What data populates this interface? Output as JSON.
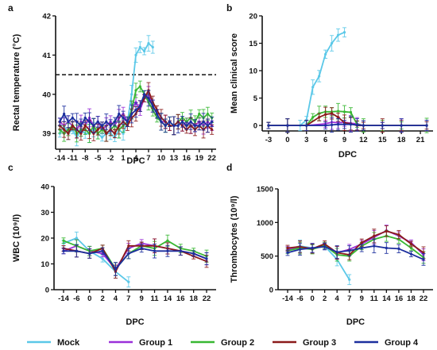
{
  "colors": {
    "Mock": "#5bc8e8",
    "Group 1": "#9b30d9",
    "Group 2": "#38b832",
    "Group 3": "#8b1a1a",
    "Group 4": "#1c2f9e"
  },
  "legend": [
    "Mock",
    "Group 1",
    "Group 2",
    "Group 3",
    "Group 4"
  ],
  "chart_data": [
    {
      "panel": "a",
      "type": "line",
      "xlabel": "DPC",
      "ylabel": "Rectal temperature (°C)",
      "xlim": [
        -15,
        23
      ],
      "ylim": [
        38.6,
        42
      ],
      "yticks": [
        39,
        40,
        41,
        42
      ],
      "xticks": [
        -14,
        -11,
        -8,
        -5,
        -2,
        1,
        4,
        7,
        10,
        13,
        16,
        19,
        22
      ],
      "reference_line": 40.5,
      "series": [
        {
          "name": "Mock",
          "x": [
            -14,
            -13,
            -12,
            -11,
            -10,
            -9,
            -8,
            -7,
            -6,
            -5,
            -4,
            -3,
            -2,
            -1,
            0,
            1,
            2,
            3,
            4,
            5,
            6,
            7,
            8
          ],
          "y": [
            39.0,
            39.2,
            39.0,
            39.1,
            38.9,
            39.1,
            39.0,
            39.0,
            39.1,
            39.0,
            38.9,
            39.0,
            39.0,
            38.9,
            39.1,
            39.0,
            39.3,
            40.0,
            41.0,
            41.2,
            41.1,
            41.3,
            41.2
          ]
        },
        {
          "name": "Group 1",
          "x": [
            -14,
            -13,
            -12,
            -11,
            -10,
            -9,
            -8,
            -7,
            -6,
            -5,
            -4,
            -3,
            -2,
            -1,
            0,
            1,
            2,
            3,
            4,
            5,
            6,
            7,
            8,
            9,
            10,
            11,
            12,
            13,
            14,
            15,
            16,
            17,
            18,
            19,
            20,
            21,
            22
          ],
          "y": [
            39.3,
            39.2,
            39.3,
            39.2,
            39.1,
            39.3,
            39.2,
            39.4,
            39.2,
            39.3,
            39.1,
            39.2,
            39.3,
            39.2,
            39.4,
            39.5,
            39.3,
            39.6,
            39.8,
            39.6,
            39.9,
            40.0,
            39.7,
            39.5,
            39.3,
            39.3,
            39.2,
            39.2,
            39.3,
            39.2,
            39.3,
            39.2,
            39.2,
            39.3,
            39.2,
            39.3,
            39.2
          ]
        },
        {
          "name": "Group 2",
          "x": [
            -14,
            -13,
            -12,
            -11,
            -10,
            -9,
            -8,
            -7,
            -6,
            -5,
            -4,
            -3,
            -2,
            -1,
            0,
            1,
            2,
            3,
            4,
            5,
            6,
            7,
            8,
            9,
            10,
            11,
            12,
            13,
            14,
            15,
            16,
            17,
            18,
            19,
            20,
            21,
            22
          ],
          "y": [
            39.1,
            39.0,
            39.1,
            39.2,
            39.0,
            39.1,
            39.1,
            39.0,
            39.2,
            39.0,
            39.1,
            39.0,
            39.1,
            39.2,
            39.1,
            39.2,
            39.3,
            39.6,
            40.1,
            40.2,
            40.0,
            39.8,
            39.6,
            39.4,
            39.3,
            39.2,
            39.3,
            39.2,
            39.3,
            39.4,
            39.3,
            39.4,
            39.3,
            39.5,
            39.4,
            39.5,
            39.4
          ]
        },
        {
          "name": "Group 3",
          "x": [
            -14,
            -13,
            -12,
            -11,
            -10,
            -9,
            -8,
            -7,
            -6,
            -5,
            -4,
            -3,
            -2,
            -1,
            0,
            1,
            2,
            3,
            4,
            5,
            6,
            7,
            8,
            9,
            10,
            11,
            12,
            13,
            14,
            15,
            16,
            17,
            18,
            19,
            20,
            21,
            22
          ],
          "y": [
            39.2,
            39.1,
            39.0,
            39.2,
            39.1,
            39.0,
            39.2,
            39.1,
            39.0,
            39.1,
            39.2,
            39.0,
            39.1,
            39.0,
            39.2,
            39.3,
            39.2,
            39.4,
            39.5,
            39.7,
            39.9,
            40.1,
            39.8,
            39.6,
            39.4,
            39.3,
            39.2,
            39.2,
            39.3,
            39.2,
            39.1,
            39.2,
            39.1,
            39.2,
            39.1,
            39.2,
            39.1
          ]
        },
        {
          "name": "Group 4",
          "x": [
            -14,
            -13,
            -12,
            -11,
            -10,
            -9,
            -8,
            -7,
            -6,
            -5,
            -4,
            -3,
            -2,
            -1,
            0,
            1,
            2,
            3,
            4,
            5,
            6,
            7,
            8,
            9,
            10,
            11,
            12,
            13,
            14,
            15,
            16,
            17,
            18,
            19,
            20,
            21,
            22
          ],
          "y": [
            39.3,
            39.5,
            39.3,
            39.4,
            39.3,
            39.2,
            39.4,
            39.3,
            39.2,
            39.3,
            39.2,
            39.3,
            39.2,
            39.3,
            39.5,
            39.4,
            39.3,
            39.5,
            39.6,
            39.7,
            40.0,
            39.9,
            39.7,
            39.5,
            39.3,
            39.2,
            39.3,
            39.2,
            39.2,
            39.3,
            39.2,
            39.3,
            39.2,
            39.2,
            39.3,
            39.2,
            39.3
          ]
        }
      ]
    },
    {
      "panel": "b",
      "type": "line",
      "xlabel": "DPC",
      "ylabel": "Mean clinical score",
      "xlim": [
        -4,
        23
      ],
      "ylim": [
        -1,
        20
      ],
      "yticks": [
        0,
        5,
        10,
        15,
        20
      ],
      "xticks": [
        -3,
        0,
        3,
        6,
        9,
        12,
        15,
        18,
        21
      ],
      "series": [
        {
          "name": "Mock",
          "x": [
            -3,
            0,
            2,
            3,
            4,
            5,
            6,
            7,
            8,
            9
          ],
          "y": [
            0,
            0,
            0,
            1.0,
            7.0,
            9.0,
            13.0,
            15.0,
            16.5,
            17.0
          ]
        },
        {
          "name": "Group 1",
          "x": [
            -3,
            0,
            3,
            6,
            7,
            8,
            9,
            10,
            11,
            12,
            15,
            18,
            22
          ],
          "y": [
            0,
            0,
            0,
            0.3,
            0.6,
            0.5,
            0.6,
            0.4,
            0.3,
            0,
            0,
            0,
            0
          ]
        },
        {
          "name": "Group 2",
          "x": [
            -3,
            0,
            3,
            4,
            5,
            6,
            7,
            8,
            9,
            10,
            11,
            12,
            15,
            18,
            22
          ],
          "y": [
            0,
            0,
            0,
            1.5,
            2.2,
            2.5,
            2.5,
            2.6,
            2.5,
            2.4,
            0.2,
            0,
            0,
            0,
            0
          ]
        },
        {
          "name": "Group 3",
          "x": [
            -3,
            0,
            3,
            5,
            6,
            7,
            8,
            9,
            10,
            11,
            12,
            15,
            18,
            22
          ],
          "y": [
            0,
            0,
            0,
            1.5,
            2.0,
            2.2,
            1.5,
            0.5,
            0.3,
            0,
            0,
            0,
            0,
            0
          ]
        },
        {
          "name": "Group 4",
          "x": [
            -3,
            0,
            3,
            6,
            7,
            8,
            9,
            10,
            11,
            12,
            15,
            18,
            22
          ],
          "y": [
            0,
            0,
            0,
            0,
            0.1,
            0.2,
            0.2,
            0.2,
            0.1,
            0,
            0,
            0,
            0
          ]
        }
      ]
    },
    {
      "panel": "c",
      "type": "line",
      "xlabel": "DPC",
      "ylabel": "WBC (10⁹/l)",
      "ylim": [
        0,
        40
      ],
      "yticks": [
        0,
        10,
        20,
        30,
        40
      ],
      "categories": [
        "-14",
        "-6",
        "0",
        "2",
        "4",
        "7",
        "9",
        "11",
        "14",
        "16",
        "18",
        "22"
      ],
      "series": [
        {
          "name": "Mock",
          "values": [
            18,
            20,
            15,
            12,
            7,
            3,
            null,
            null,
            null,
            null,
            null,
            null
          ]
        },
        {
          "name": "Group 1",
          "values": [
            15,
            17,
            15,
            14,
            8,
            16,
            18,
            17,
            16,
            15,
            14,
            12
          ]
        },
        {
          "name": "Group 2",
          "values": [
            19,
            17,
            15,
            16,
            8,
            14,
            17,
            16,
            19,
            16,
            15,
            13
          ]
        },
        {
          "name": "Group 3",
          "values": [
            16,
            15,
            14,
            16,
            7,
            17,
            17,
            17,
            16,
            15,
            13,
            11
          ]
        },
        {
          "name": "Group 4",
          "values": [
            15,
            15,
            14,
            15,
            8,
            14,
            16,
            15,
            15,
            15,
            14,
            12
          ]
        }
      ]
    },
    {
      "panel": "d",
      "type": "line",
      "xlabel": "DPC",
      "ylabel": "Thrombocytes (10⁹/l)",
      "ylim": [
        0,
        1500
      ],
      "yticks": [
        0,
        500,
        1000,
        1500
      ],
      "categories": [
        "-14",
        "-6",
        "0",
        "2",
        "4",
        "7",
        "9",
        "11",
        "14",
        "16",
        "18",
        "22"
      ],
      "series": [
        {
          "name": "Mock",
          "values": [
            600,
            650,
            620,
            650,
            450,
            150,
            null,
            null,
            null,
            null,
            null,
            null
          ]
        },
        {
          "name": "Group 1",
          "values": [
            600,
            620,
            620,
            650,
            550,
            600,
            680,
            780,
            880,
            800,
            700,
            520
          ]
        },
        {
          "name": "Group 2",
          "values": [
            580,
            620,
            600,
            660,
            520,
            500,
            650,
            750,
            800,
            750,
            620,
            480
          ]
        },
        {
          "name": "Group 3",
          "values": [
            620,
            640,
            610,
            680,
            550,
            520,
            700,
            800,
            870,
            820,
            680,
            550
          ]
        },
        {
          "name": "Group 4",
          "values": [
            550,
            600,
            620,
            640,
            560,
            580,
            620,
            650,
            620,
            610,
            530,
            450
          ]
        }
      ]
    }
  ]
}
